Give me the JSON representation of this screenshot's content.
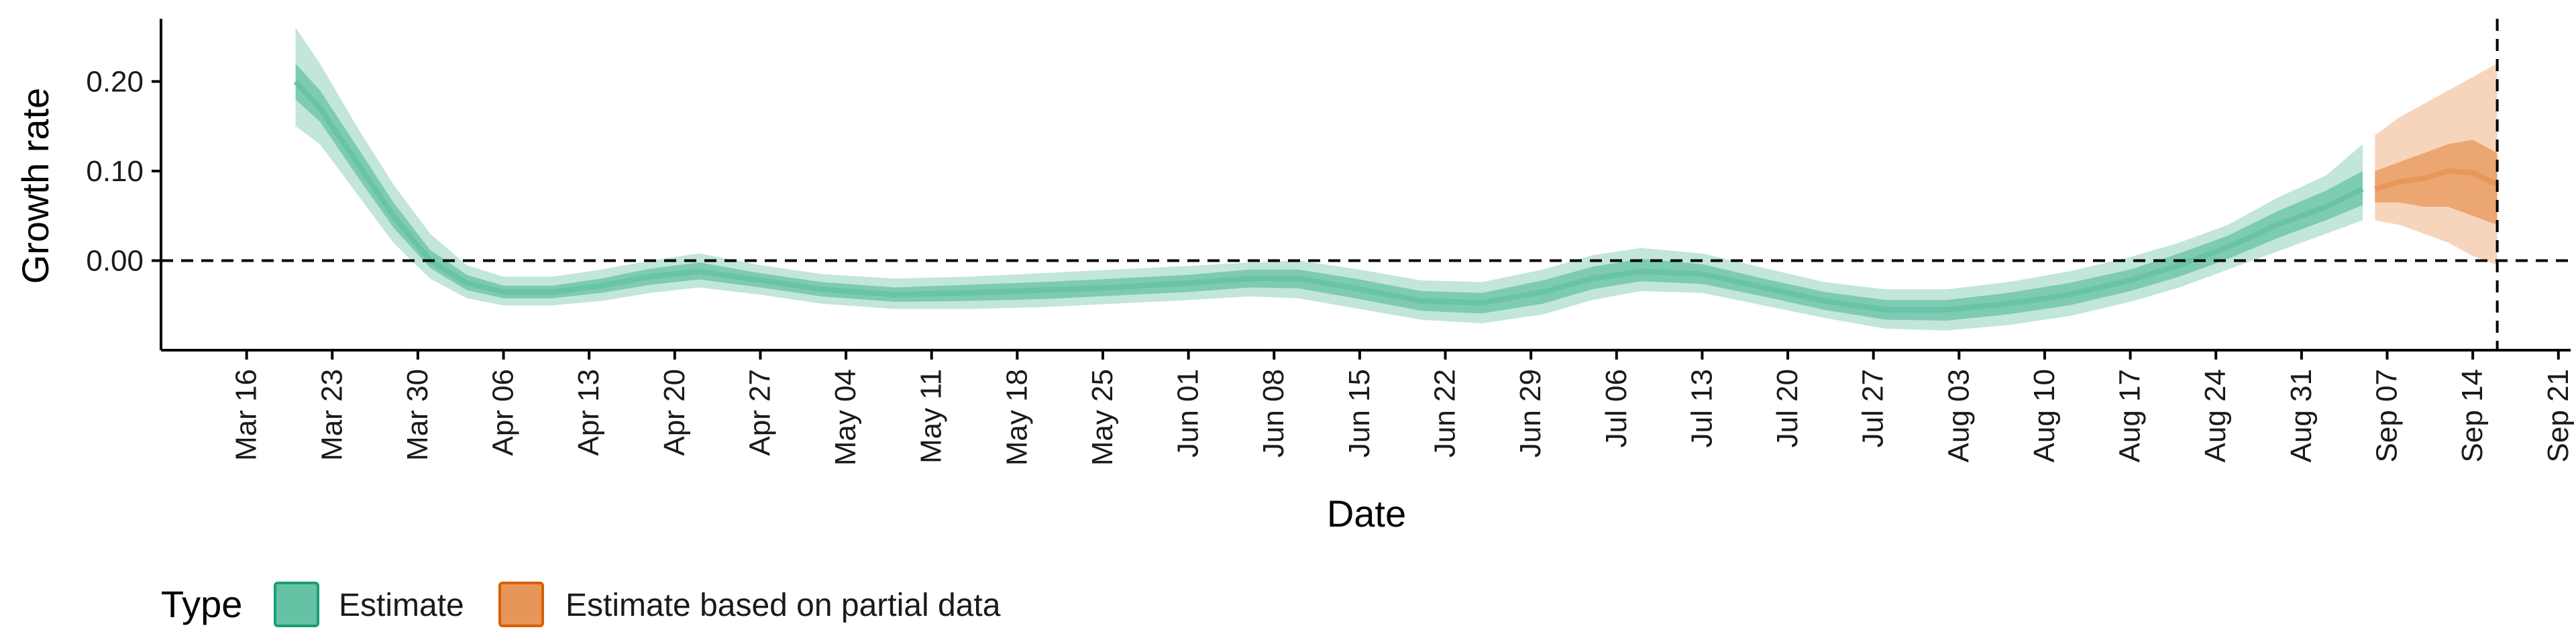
{
  "chart_data": {
    "type": "area",
    "xlabel": "Date",
    "ylabel": "Growth rate",
    "x_ticks": [
      "Mar 16",
      "Mar 23",
      "Mar 30",
      "Apr 06",
      "Apr 13",
      "Apr 20",
      "Apr 27",
      "May 04",
      "May 11",
      "May 18",
      "May 25",
      "Jun 01",
      "Jun 08",
      "Jun 15",
      "Jun 22",
      "Jun 29",
      "Jul 06",
      "Jul 13",
      "Jul 20",
      "Jul 27",
      "Aug 03",
      "Aug 10",
      "Aug 17",
      "Aug 24",
      "Aug 31",
      "Sep 07",
      "Sep 14",
      "Sep 21"
    ],
    "y_ticks": [
      "0.20",
      "0.10",
      "0.00"
    ],
    "ylim": [
      -0.1,
      0.27
    ],
    "xlim": [
      "2020-03-09",
      "2020-09-22"
    ],
    "reference_lines": {
      "y": 0.0,
      "x": "2020-09-16"
    },
    "legend": {
      "title": "Type",
      "position": "bottom-left",
      "items": [
        {
          "label": "Estimate",
          "color": "#66c2a5",
          "border": "#1b9e77"
        },
        {
          "label": "Estimate based on partial data",
          "color": "#e8955a",
          "border": "#d95f02"
        }
      ]
    },
    "colors": {
      "estimate_inner": "#66c2a5",
      "estimate_outer": "#a8dcc9",
      "partial_inner": "#e8955a",
      "partial_outer": "#f3c3a0"
    },
    "series": [
      {
        "name": "Estimate",
        "x": [
          "2020-03-20",
          "2020-03-22",
          "2020-03-25",
          "2020-03-28",
          "2020-03-31",
          "2020-04-03",
          "2020-04-06",
          "2020-04-10",
          "2020-04-14",
          "2020-04-18",
          "2020-04-22",
          "2020-04-27",
          "2020-05-02",
          "2020-05-08",
          "2020-05-14",
          "2020-05-20",
          "2020-05-26",
          "2020-06-01",
          "2020-06-06",
          "2020-06-10",
          "2020-06-15",
          "2020-06-20",
          "2020-06-25",
          "2020-06-30",
          "2020-07-04",
          "2020-07-08",
          "2020-07-13",
          "2020-07-18",
          "2020-07-23",
          "2020-07-28",
          "2020-08-02",
          "2020-08-07",
          "2020-08-12",
          "2020-08-17",
          "2020-08-21",
          "2020-08-25",
          "2020-08-29",
          "2020-09-02",
          "2020-09-05"
        ],
        "median": [
          0.2,
          0.17,
          0.11,
          0.05,
          0.0,
          -0.025,
          -0.035,
          -0.035,
          -0.028,
          -0.018,
          -0.012,
          -0.022,
          -0.032,
          -0.038,
          -0.036,
          -0.033,
          -0.03,
          -0.025,
          -0.02,
          -0.02,
          -0.032,
          -0.045,
          -0.047,
          -0.035,
          -0.02,
          -0.012,
          -0.015,
          -0.03,
          -0.045,
          -0.055,
          -0.055,
          -0.048,
          -0.038,
          -0.022,
          -0.005,
          0.015,
          0.04,
          0.06,
          0.08
        ],
        "lower_90": [
          0.15,
          0.13,
          0.075,
          0.02,
          -0.02,
          -0.042,
          -0.05,
          -0.05,
          -0.045,
          -0.036,
          -0.03,
          -0.038,
          -0.048,
          -0.054,
          -0.054,
          -0.052,
          -0.048,
          -0.044,
          -0.04,
          -0.042,
          -0.054,
          -0.066,
          -0.07,
          -0.06,
          -0.044,
          -0.034,
          -0.036,
          -0.05,
          -0.064,
          -0.076,
          -0.078,
          -0.072,
          -0.062,
          -0.046,
          -0.03,
          -0.01,
          0.01,
          0.03,
          0.045
        ],
        "upper_90": [
          0.26,
          0.22,
          0.15,
          0.085,
          0.03,
          -0.005,
          -0.018,
          -0.018,
          -0.01,
          0.0,
          0.008,
          -0.005,
          -0.015,
          -0.02,
          -0.018,
          -0.014,
          -0.01,
          -0.006,
          -0.002,
          0.0,
          -0.01,
          -0.022,
          -0.024,
          -0.01,
          0.006,
          0.014,
          0.008,
          -0.008,
          -0.024,
          -0.032,
          -0.032,
          -0.024,
          -0.012,
          0.004,
          0.02,
          0.04,
          0.07,
          0.095,
          0.13
        ],
        "lower_50": [
          0.18,
          0.155,
          0.095,
          0.037,
          -0.008,
          -0.033,
          -0.042,
          -0.042,
          -0.036,
          -0.027,
          -0.021,
          -0.03,
          -0.04,
          -0.046,
          -0.045,
          -0.043,
          -0.039,
          -0.035,
          -0.03,
          -0.031,
          -0.043,
          -0.056,
          -0.059,
          -0.048,
          -0.032,
          -0.023,
          -0.026,
          -0.04,
          -0.055,
          -0.066,
          -0.067,
          -0.06,
          -0.05,
          -0.034,
          -0.018,
          0.002,
          0.025,
          0.045,
          0.062
        ],
        "upper_50": [
          0.22,
          0.19,
          0.128,
          0.065,
          0.012,
          -0.016,
          -0.028,
          -0.028,
          -0.02,
          -0.009,
          -0.002,
          -0.014,
          -0.024,
          -0.03,
          -0.027,
          -0.024,
          -0.02,
          -0.016,
          -0.01,
          -0.01,
          -0.021,
          -0.034,
          -0.036,
          -0.022,
          -0.007,
          0.002,
          -0.004,
          -0.02,
          -0.035,
          -0.044,
          -0.044,
          -0.036,
          -0.025,
          -0.01,
          0.008,
          0.028,
          0.055,
          0.078,
          0.1
        ]
      },
      {
        "name": "Estimate based on partial data",
        "x": [
          "2020-09-06",
          "2020-09-08",
          "2020-09-10",
          "2020-09-12",
          "2020-09-14",
          "2020-09-16"
        ],
        "median": [
          0.08,
          0.088,
          0.092,
          0.1,
          0.098,
          0.085
        ],
        "lower_90": [
          0.045,
          0.04,
          0.03,
          0.02,
          0.005,
          -0.005
        ],
        "upper_90": [
          0.14,
          0.16,
          0.175,
          0.19,
          0.205,
          0.22
        ],
        "lower_50": [
          0.065,
          0.065,
          0.06,
          0.06,
          0.05,
          0.04
        ],
        "upper_50": [
          0.1,
          0.11,
          0.12,
          0.13,
          0.135,
          0.12
        ]
      }
    ]
  }
}
